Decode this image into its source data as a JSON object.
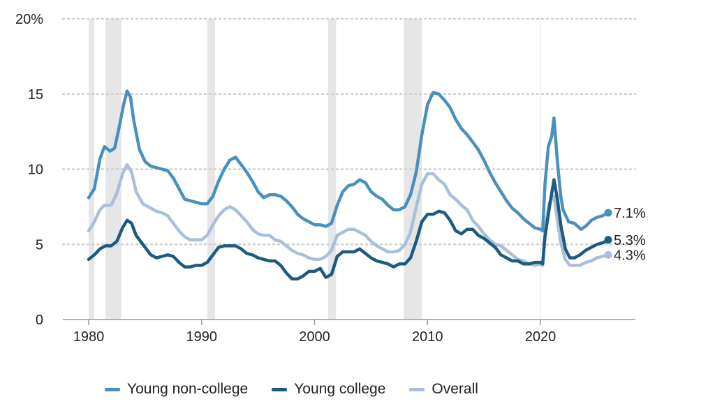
{
  "chart_data": {
    "type": "line",
    "xlim": [
      1978,
      2030
    ],
    "ylim": [
      0,
      20
    ],
    "x_ticks": [
      {
        "value": 1980,
        "label": "1980"
      },
      {
        "value": 1990,
        "label": "1990"
      },
      {
        "value": 2000,
        "label": "2000"
      },
      {
        "value": 2010,
        "label": "2010"
      },
      {
        "value": 2020,
        "label": "2020"
      }
    ],
    "y_ticks": [
      {
        "value": 0,
        "label": "0"
      },
      {
        "value": 5,
        "label": "5"
      },
      {
        "value": 10,
        "label": "10"
      },
      {
        "value": 15,
        "label": "15"
      },
      {
        "value": 20,
        "label": "20%"
      }
    ],
    "grid": "horizontal dotted",
    "legend_position": "bottom",
    "recessions": [
      [
        1980.0,
        1980.5
      ],
      [
        1981.5,
        1982.9
      ],
      [
        1990.5,
        1991.2
      ],
      [
        2001.2,
        2001.9
      ],
      [
        2007.9,
        2009.5
      ]
    ],
    "series": [
      {
        "name": "Young non-college",
        "color": "#4a90bd",
        "end_label": "7.1%",
        "points": [
          [
            1980.0,
            8.1
          ],
          [
            1980.5,
            8.7
          ],
          [
            1981.0,
            10.7
          ],
          [
            1981.4,
            11.5
          ],
          [
            1981.9,
            11.2
          ],
          [
            1982.3,
            11.4
          ],
          [
            1982.7,
            12.8
          ],
          [
            1983.1,
            14.3
          ],
          [
            1983.4,
            15.2
          ],
          [
            1983.7,
            14.8
          ],
          [
            1984.0,
            13.2
          ],
          [
            1984.5,
            11.3
          ],
          [
            1985.0,
            10.5
          ],
          [
            1985.5,
            10.2
          ],
          [
            1986.0,
            10.1
          ],
          [
            1986.5,
            10.0
          ],
          [
            1987.0,
            9.9
          ],
          [
            1987.5,
            9.4
          ],
          [
            1988.0,
            8.7
          ],
          [
            1988.5,
            8.0
          ],
          [
            1989.0,
            7.9
          ],
          [
            1989.5,
            7.8
          ],
          [
            1990.0,
            7.7
          ],
          [
            1990.5,
            7.7
          ],
          [
            1991.0,
            8.2
          ],
          [
            1991.5,
            9.2
          ],
          [
            1992.0,
            10.0
          ],
          [
            1992.5,
            10.6
          ],
          [
            1993.0,
            10.8
          ],
          [
            1993.5,
            10.3
          ],
          [
            1994.0,
            9.8
          ],
          [
            1994.5,
            9.2
          ],
          [
            1995.0,
            8.5
          ],
          [
            1995.5,
            8.1
          ],
          [
            1996.0,
            8.3
          ],
          [
            1996.5,
            8.3
          ],
          [
            1997.0,
            8.2
          ],
          [
            1997.5,
            7.9
          ],
          [
            1998.0,
            7.5
          ],
          [
            1998.5,
            7.0
          ],
          [
            1999.0,
            6.7
          ],
          [
            1999.5,
            6.5
          ],
          [
            2000.0,
            6.3
          ],
          [
            2000.5,
            6.3
          ],
          [
            2001.0,
            6.2
          ],
          [
            2001.5,
            6.4
          ],
          [
            2002.0,
            7.6
          ],
          [
            2002.5,
            8.5
          ],
          [
            2003.0,
            8.9
          ],
          [
            2003.5,
            9.0
          ],
          [
            2004.0,
            9.3
          ],
          [
            2004.5,
            9.1
          ],
          [
            2005.0,
            8.5
          ],
          [
            2005.5,
            8.2
          ],
          [
            2006.0,
            8.0
          ],
          [
            2006.5,
            7.6
          ],
          [
            2007.0,
            7.3
          ],
          [
            2007.5,
            7.3
          ],
          [
            2008.0,
            7.5
          ],
          [
            2008.5,
            8.3
          ],
          [
            2009.0,
            9.8
          ],
          [
            2009.5,
            12.3
          ],
          [
            2010.0,
            14.3
          ],
          [
            2010.5,
            15.1
          ],
          [
            2011.0,
            15.0
          ],
          [
            2011.5,
            14.6
          ],
          [
            2012.0,
            14.1
          ],
          [
            2012.5,
            13.3
          ],
          [
            2013.0,
            12.7
          ],
          [
            2013.5,
            12.3
          ],
          [
            2014.0,
            11.8
          ],
          [
            2014.5,
            11.3
          ],
          [
            2015.0,
            10.6
          ],
          [
            2015.5,
            9.8
          ],
          [
            2016.0,
            9.1
          ],
          [
            2016.5,
            8.5
          ],
          [
            2017.0,
            7.9
          ],
          [
            2017.5,
            7.4
          ],
          [
            2018.0,
            7.1
          ],
          [
            2018.5,
            6.7
          ],
          [
            2019.0,
            6.4
          ],
          [
            2019.5,
            6.1
          ],
          [
            2020.0,
            6.0
          ],
          [
            2020.2,
            5.9
          ],
          [
            2020.4,
            9.0
          ],
          [
            2020.7,
            11.5
          ],
          [
            2021.0,
            12.2
          ],
          [
            2021.2,
            13.4
          ],
          [
            2021.5,
            10.5
          ],
          [
            2021.8,
            8.2
          ],
          [
            2022.0,
            7.3
          ],
          [
            2022.5,
            6.5
          ],
          [
            2023.0,
            6.4
          ],
          [
            2023.3,
            6.2
          ],
          [
            2023.6,
            6.0
          ],
          [
            2024.0,
            6.2
          ],
          [
            2024.5,
            6.6
          ],
          [
            2025.0,
            6.8
          ],
          [
            2025.5,
            6.9
          ],
          [
            2026.0,
            7.1
          ]
        ]
      },
      {
        "name": "Young college",
        "color": "#1e5a80",
        "end_label": "5.3%",
        "points": [
          [
            1980.0,
            4.0
          ],
          [
            1980.5,
            4.3
          ],
          [
            1981.0,
            4.7
          ],
          [
            1981.5,
            4.9
          ],
          [
            1982.0,
            4.9
          ],
          [
            1982.5,
            5.2
          ],
          [
            1983.0,
            6.1
          ],
          [
            1983.4,
            6.6
          ],
          [
            1983.8,
            6.4
          ],
          [
            1984.2,
            5.6
          ],
          [
            1984.8,
            5.0
          ],
          [
            1985.5,
            4.3
          ],
          [
            1986.0,
            4.1
          ],
          [
            1986.5,
            4.2
          ],
          [
            1987.0,
            4.3
          ],
          [
            1987.5,
            4.2
          ],
          [
            1988.0,
            3.8
          ],
          [
            1988.5,
            3.5
          ],
          [
            1989.0,
            3.5
          ],
          [
            1989.5,
            3.6
          ],
          [
            1990.0,
            3.6
          ],
          [
            1990.5,
            3.8
          ],
          [
            1991.0,
            4.3
          ],
          [
            1991.5,
            4.8
          ],
          [
            1992.0,
            4.9
          ],
          [
            1992.5,
            4.9
          ],
          [
            1993.0,
            4.9
          ],
          [
            1993.5,
            4.7
          ],
          [
            1994.0,
            4.4
          ],
          [
            1994.5,
            4.3
          ],
          [
            1995.0,
            4.1
          ],
          [
            1995.5,
            4.0
          ],
          [
            1996.0,
            3.9
          ],
          [
            1996.5,
            3.9
          ],
          [
            1997.0,
            3.6
          ],
          [
            1997.5,
            3.1
          ],
          [
            1998.0,
            2.7
          ],
          [
            1998.5,
            2.7
          ],
          [
            1999.0,
            2.9
          ],
          [
            1999.5,
            3.2
          ],
          [
            2000.0,
            3.2
          ],
          [
            2000.5,
            3.4
          ],
          [
            2001.0,
            2.8
          ],
          [
            2001.5,
            3.0
          ],
          [
            2002.0,
            4.2
          ],
          [
            2002.5,
            4.5
          ],
          [
            2003.0,
            4.5
          ],
          [
            2003.5,
            4.5
          ],
          [
            2004.0,
            4.7
          ],
          [
            2004.5,
            4.4
          ],
          [
            2005.0,
            4.1
          ],
          [
            2005.5,
            3.9
          ],
          [
            2006.0,
            3.8
          ],
          [
            2006.5,
            3.7
          ],
          [
            2007.0,
            3.5
          ],
          [
            2007.5,
            3.7
          ],
          [
            2008.0,
            3.7
          ],
          [
            2008.5,
            4.1
          ],
          [
            2009.0,
            5.2
          ],
          [
            2009.5,
            6.5
          ],
          [
            2010.0,
            7.0
          ],
          [
            2010.5,
            7.0
          ],
          [
            2011.0,
            7.2
          ],
          [
            2011.5,
            7.1
          ],
          [
            2012.0,
            6.6
          ],
          [
            2012.5,
            5.9
          ],
          [
            2013.0,
            5.7
          ],
          [
            2013.5,
            6.0
          ],
          [
            2014.0,
            6.0
          ],
          [
            2014.5,
            5.6
          ],
          [
            2015.0,
            5.4
          ],
          [
            2015.5,
            5.1
          ],
          [
            2016.0,
            4.8
          ],
          [
            2016.5,
            4.3
          ],
          [
            2017.0,
            4.1
          ],
          [
            2017.5,
            3.9
          ],
          [
            2018.0,
            3.9
          ],
          [
            2018.5,
            3.7
          ],
          [
            2019.0,
            3.7
          ],
          [
            2019.5,
            3.8
          ],
          [
            2020.0,
            3.8
          ],
          [
            2020.2,
            3.7
          ],
          [
            2020.4,
            5.5
          ],
          [
            2020.8,
            7.5
          ],
          [
            2021.2,
            9.3
          ],
          [
            2021.5,
            8.0
          ],
          [
            2021.8,
            6.3
          ],
          [
            2022.2,
            4.7
          ],
          [
            2022.6,
            4.1
          ],
          [
            2023.0,
            4.1
          ],
          [
            2023.5,
            4.3
          ],
          [
            2024.0,
            4.6
          ],
          [
            2024.5,
            4.8
          ],
          [
            2025.0,
            5.0
          ],
          [
            2025.5,
            5.1
          ],
          [
            2026.0,
            5.3
          ]
        ]
      },
      {
        "name": "Overall",
        "color": "#a9bfdb",
        "end_label": "4.3%",
        "points": [
          [
            1980.0,
            5.9
          ],
          [
            1980.5,
            6.5
          ],
          [
            1981.0,
            7.3
          ],
          [
            1981.4,
            7.6
          ],
          [
            1982.0,
            7.6
          ],
          [
            1982.5,
            8.4
          ],
          [
            1983.0,
            9.7
          ],
          [
            1983.4,
            10.3
          ],
          [
            1983.8,
            9.8
          ],
          [
            1984.2,
            8.5
          ],
          [
            1984.8,
            7.7
          ],
          [
            1985.5,
            7.4
          ],
          [
            1986.0,
            7.2
          ],
          [
            1986.5,
            7.1
          ],
          [
            1987.0,
            6.9
          ],
          [
            1987.5,
            6.4
          ],
          [
            1988.0,
            5.9
          ],
          [
            1988.5,
            5.5
          ],
          [
            1989.0,
            5.3
          ],
          [
            1989.5,
            5.3
          ],
          [
            1990.0,
            5.3
          ],
          [
            1990.5,
            5.6
          ],
          [
            1991.0,
            6.3
          ],
          [
            1991.5,
            6.9
          ],
          [
            1992.0,
            7.3
          ],
          [
            1992.5,
            7.5
          ],
          [
            1993.0,
            7.3
          ],
          [
            1993.5,
            6.9
          ],
          [
            1994.0,
            6.5
          ],
          [
            1994.5,
            6.0
          ],
          [
            1995.0,
            5.7
          ],
          [
            1995.5,
            5.6
          ],
          [
            1996.0,
            5.6
          ],
          [
            1996.5,
            5.3
          ],
          [
            1997.0,
            5.2
          ],
          [
            1997.5,
            4.9
          ],
          [
            1998.0,
            4.6
          ],
          [
            1998.5,
            4.4
          ],
          [
            1999.0,
            4.3
          ],
          [
            1999.5,
            4.1
          ],
          [
            2000.0,
            4.0
          ],
          [
            2000.5,
            4.0
          ],
          [
            2001.0,
            4.2
          ],
          [
            2001.5,
            4.6
          ],
          [
            2002.0,
            5.6
          ],
          [
            2002.5,
            5.8
          ],
          [
            2003.0,
            6.0
          ],
          [
            2003.5,
            6.0
          ],
          [
            2004.0,
            5.8
          ],
          [
            2004.5,
            5.6
          ],
          [
            2005.0,
            5.2
          ],
          [
            2005.5,
            4.9
          ],
          [
            2006.0,
            4.7
          ],
          [
            2006.5,
            4.5
          ],
          [
            2007.0,
            4.5
          ],
          [
            2007.5,
            4.6
          ],
          [
            2008.0,
            5.0
          ],
          [
            2008.5,
            5.8
          ],
          [
            2009.0,
            7.5
          ],
          [
            2009.5,
            9.0
          ],
          [
            2010.0,
            9.7
          ],
          [
            2010.5,
            9.7
          ],
          [
            2011.0,
            9.3
          ],
          [
            2011.5,
            9.0
          ],
          [
            2012.0,
            8.3
          ],
          [
            2012.5,
            8.0
          ],
          [
            2013.0,
            7.6
          ],
          [
            2013.5,
            7.3
          ],
          [
            2014.0,
            6.6
          ],
          [
            2014.5,
            6.2
          ],
          [
            2015.0,
            5.7
          ],
          [
            2015.5,
            5.3
          ],
          [
            2016.0,
            5.0
          ],
          [
            2016.5,
            4.9
          ],
          [
            2017.0,
            4.6
          ],
          [
            2017.5,
            4.3
          ],
          [
            2018.0,
            4.0
          ],
          [
            2018.5,
            3.9
          ],
          [
            2019.0,
            3.7
          ],
          [
            2019.5,
            3.6
          ],
          [
            2020.0,
            3.7
          ],
          [
            2020.2,
            3.6
          ],
          [
            2020.4,
            6.0
          ],
          [
            2020.8,
            7.8
          ],
          [
            2021.2,
            8.2
          ],
          [
            2021.5,
            6.6
          ],
          [
            2021.8,
            5.1
          ],
          [
            2022.2,
            4.0
          ],
          [
            2022.6,
            3.6
          ],
          [
            2023.0,
            3.6
          ],
          [
            2023.5,
            3.6
          ],
          [
            2024.0,
            3.8
          ],
          [
            2024.5,
            3.9
          ],
          [
            2025.0,
            4.1
          ],
          [
            2025.5,
            4.2
          ],
          [
            2026.0,
            4.3
          ]
        ]
      }
    ]
  }
}
